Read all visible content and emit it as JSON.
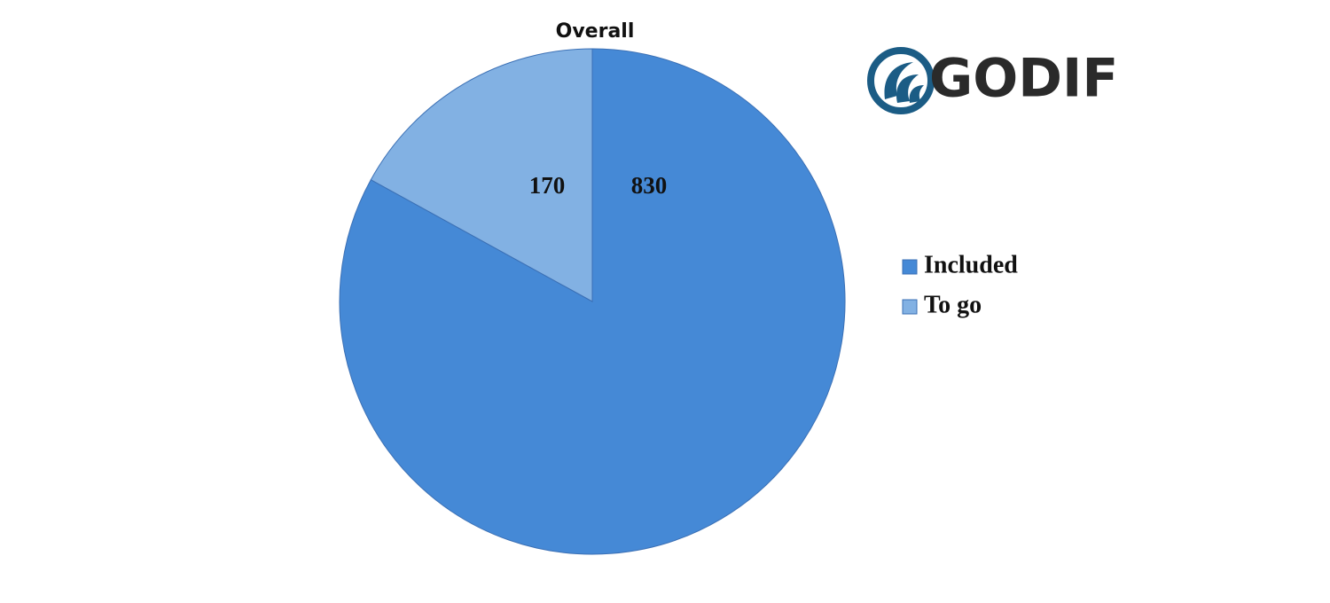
{
  "chart_data": {
    "type": "pie",
    "title": "Overall",
    "categories": [
      "Included",
      "To go"
    ],
    "values": [
      830,
      170
    ],
    "colors": [
      "#4589d6",
      "#82b1e3"
    ],
    "legend": "right"
  },
  "logo": {
    "text": "GODIF"
  }
}
